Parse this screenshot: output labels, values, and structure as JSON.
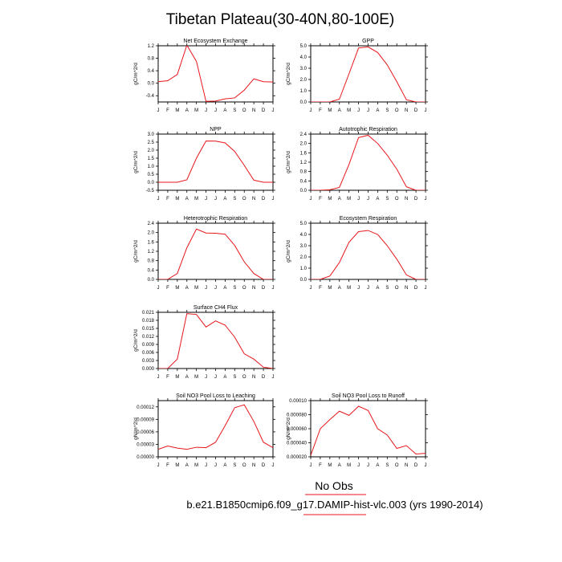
{
  "figure": {
    "title": "Tibetan Plateau(30-40N,80-100E)",
    "legend_label": "No Obs",
    "caption": "b.e21.B1850cmip6.f09_g17.DAMIP-hist-vlc.003 (yrs 1990-2014)",
    "line_color": "#e8161b",
    "legend_line_color": "#e8161b"
  },
  "chart_data": [
    {
      "type": "line",
      "title": "Net Ecosystem Exchange",
      "ylabel": "gC/m^2/d",
      "categories": [
        "J",
        "F",
        "M",
        "A",
        "M",
        "J",
        "J",
        "A",
        "S",
        "O",
        "N",
        "D",
        "J"
      ],
      "yticks": [
        "-0.4",
        "0.0",
        "0.4",
        "0.8",
        "1.2"
      ],
      "ylim": [
        -0.6,
        1.2
      ],
      "values": [
        0.05,
        0.08,
        0.28,
        1.22,
        0.7,
        -0.58,
        -0.57,
        -0.5,
        -0.47,
        -0.22,
        0.14,
        0.05,
        0.04
      ]
    },
    {
      "type": "line",
      "title": "GPP",
      "ylabel": "gC/m^2/d",
      "categories": [
        "J",
        "F",
        "M",
        "A",
        "M",
        "J",
        "J",
        "A",
        "S",
        "O",
        "N",
        "D",
        "J"
      ],
      "yticks": [
        "0.0",
        "1.0",
        "2.0",
        "3.0",
        "4.0",
        "5.0"
      ],
      "ylim": [
        0,
        5
      ],
      "values": [
        0.0,
        0.0,
        0.0,
        0.25,
        2.5,
        4.8,
        4.9,
        4.4,
        3.3,
        1.8,
        0.2,
        0.0,
        0.0
      ]
    },
    {
      "type": "line",
      "title": "NPP",
      "ylabel": "gC/m^2/d",
      "categories": [
        "J",
        "F",
        "M",
        "A",
        "M",
        "J",
        "J",
        "A",
        "S",
        "O",
        "N",
        "D",
        "J"
      ],
      "yticks": [
        "-0.5",
        "0.0",
        "0.5",
        "1.0",
        "1.5",
        "2.0",
        "2.5",
        "3.0"
      ],
      "ylim": [
        -0.5,
        3.0
      ],
      "values": [
        0.0,
        0.0,
        0.0,
        0.15,
        1.5,
        2.57,
        2.56,
        2.45,
        1.92,
        1.05,
        0.13,
        0.0,
        0.0
      ]
    },
    {
      "type": "line",
      "title": "Autotrophic Respiration",
      "ylabel": "gC/m^2/d",
      "categories": [
        "J",
        "F",
        "M",
        "A",
        "M",
        "J",
        "J",
        "A",
        "S",
        "O",
        "N",
        "D",
        "J"
      ],
      "yticks": [
        "0.0",
        "0.4",
        "0.8",
        "1.2",
        "1.6",
        "2.0",
        "2.4"
      ],
      "ylim": [
        0,
        2.4
      ],
      "values": [
        0.0,
        0.0,
        0.02,
        0.12,
        1.1,
        2.25,
        2.35,
        2.0,
        1.5,
        0.9,
        0.15,
        0.0,
        0.0
      ]
    },
    {
      "type": "line",
      "title": "Heterotrophic Respiration",
      "ylabel": "gC/m^2/d",
      "categories": [
        "J",
        "F",
        "M",
        "A",
        "M",
        "J",
        "J",
        "A",
        "S",
        "O",
        "N",
        "D",
        "J"
      ],
      "yticks": [
        "0.0",
        "0.4",
        "0.8",
        "1.2",
        "1.6",
        "2.0",
        "2.4"
      ],
      "ylim": [
        0,
        2.4
      ],
      "values": [
        0.0,
        0.0,
        0.25,
        1.35,
        2.15,
        1.98,
        1.97,
        1.93,
        1.45,
        0.75,
        0.25,
        0.0,
        0.0
      ]
    },
    {
      "type": "line",
      "title": "Ecosystem Respiration",
      "ylabel": "gC/m^2/d",
      "categories": [
        "J",
        "F",
        "M",
        "A",
        "M",
        "J",
        "J",
        "A",
        "S",
        "O",
        "N",
        "D",
        "J"
      ],
      "yticks": [
        "0.0",
        "1.0",
        "2.0",
        "3.0",
        "4.0",
        "5.0"
      ],
      "ylim": [
        0,
        5
      ],
      "values": [
        0.0,
        0.0,
        0.3,
        1.5,
        3.3,
        4.25,
        4.35,
        4.0,
        3.0,
        1.8,
        0.4,
        0.0,
        0.0
      ]
    },
    {
      "type": "line",
      "title": "Surface CH4 Flux",
      "ylabel": "gC/m^2/d",
      "categories": [
        "J",
        "F",
        "M",
        "A",
        "M",
        "J",
        "J",
        "A",
        "S",
        "O",
        "N",
        "D",
        "J"
      ],
      "yticks": [
        "0.000",
        "0.003",
        "0.006",
        "0.009",
        "0.012",
        "0.015",
        "0.018",
        "0.021"
      ],
      "ylim": [
        0,
        0.021
      ],
      "values": [
        0.0,
        0.0,
        0.0035,
        0.0205,
        0.0202,
        0.0155,
        0.0178,
        0.0162,
        0.0117,
        0.0055,
        0.0035,
        0.0005,
        0.0
      ]
    },
    {
      "type": "line",
      "title": "Soil NO3 Pool Loss to Leaching",
      "ylabel": "gN/m^2/d",
      "categories": [
        "J",
        "F",
        "M",
        "A",
        "M",
        "J",
        "J",
        "A",
        "S",
        "O",
        "N",
        "D",
        "J"
      ],
      "yticks": [
        "0.00000",
        "0.00003",
        "0.00006",
        "0.00009",
        "0.00012"
      ],
      "ylim": [
        0,
        0.000135
      ],
      "values": [
        1.8e-05,
        2.6e-05,
        2.1e-05,
        1.8e-05,
        2.3e-05,
        2.2e-05,
        3.5e-05,
        7.5e-05,
        0.000118,
        0.000125,
        8.5e-05,
        3.5e-05,
        2.2e-05
      ]
    },
    {
      "type": "line",
      "title": "Soil NO3 Pool Loss to Runoff",
      "ylabel": "gN/m^2/d",
      "categories": [
        "J",
        "F",
        "M",
        "A",
        "M",
        "J",
        "J",
        "A",
        "S",
        "O",
        "N",
        "D",
        "J"
      ],
      "yticks": [
        "0.000020",
        "0.000040",
        "0.000060",
        "0.000080",
        "0.00010"
      ],
      "ylim": [
        2e-05,
        0.0001
      ],
      "values": [
        2.2e-05,
        6e-05,
        7.3e-05,
        8.5e-05,
        7.9e-05,
        9.2e-05,
        8.6e-05,
        6e-05,
        5.1e-05,
        3.2e-05,
        3.6e-05,
        2.4e-05,
        2.5e-05
      ]
    }
  ]
}
